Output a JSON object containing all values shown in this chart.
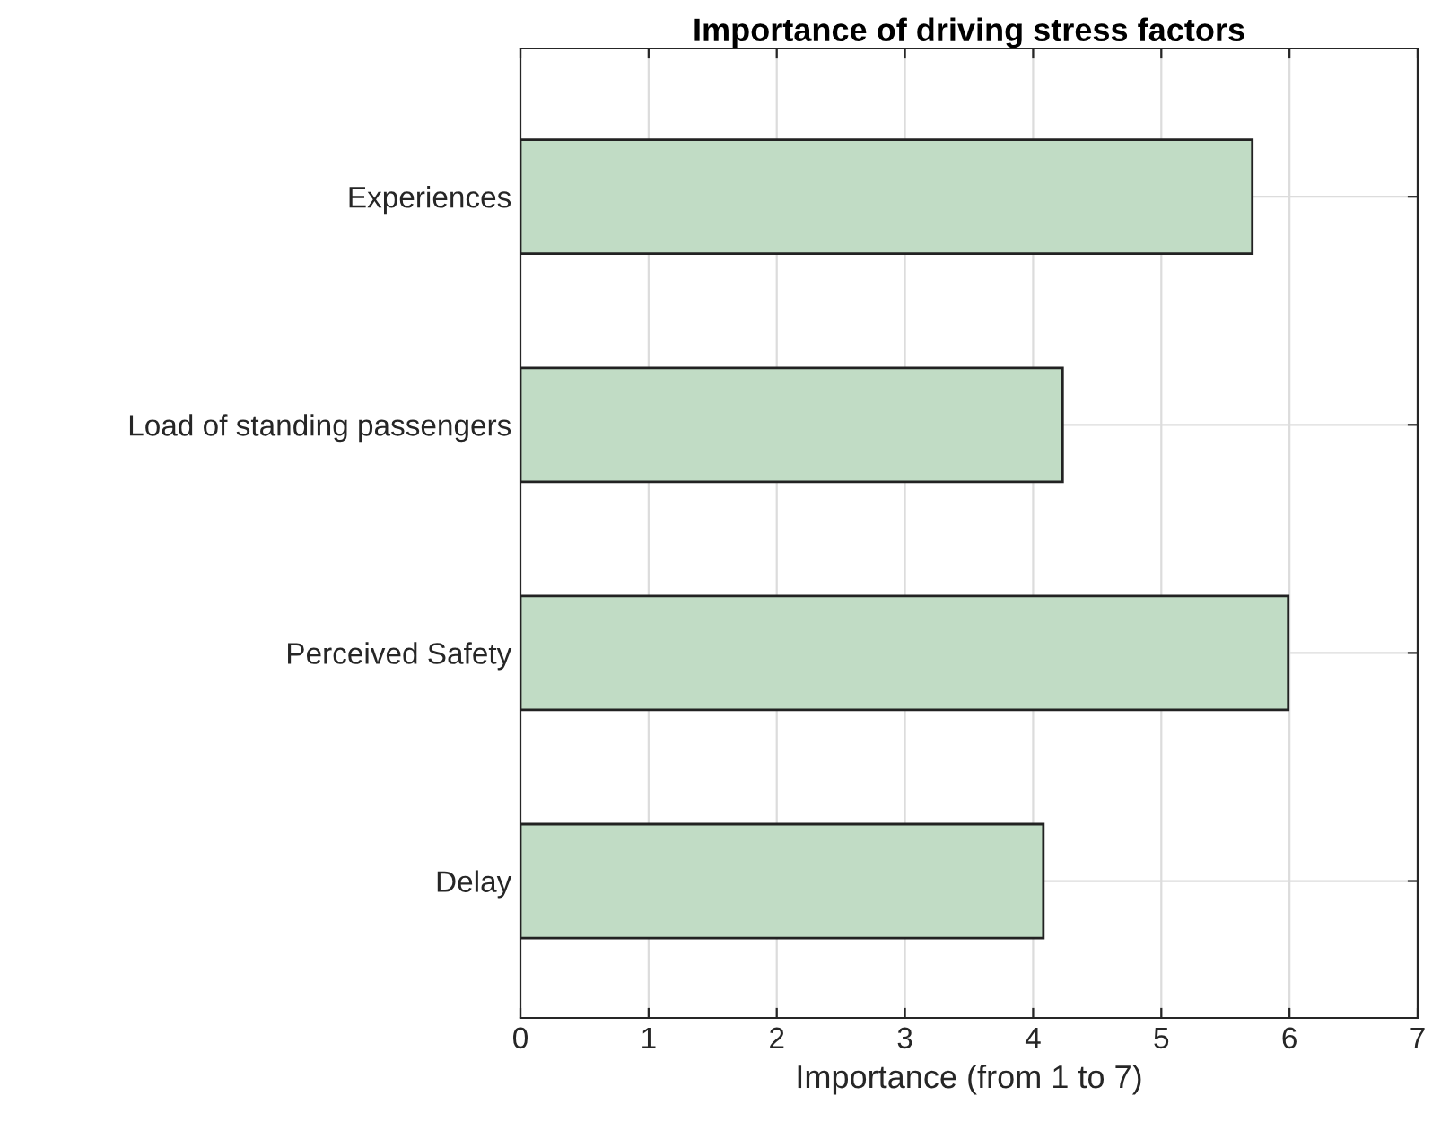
{
  "chart_data": {
    "type": "bar",
    "orientation": "horizontal",
    "title": "Importance of driving stress factors",
    "xlabel": "Importance (from 1 to 7)",
    "categories": [
      "Experiences",
      "Load of standing passengers",
      "Perceived Safety",
      "Delay"
    ],
    "values": [
      5.71,
      4.23,
      5.99,
      4.08
    ],
    "color": "#c1dcc5",
    "xlim": [
      0,
      7
    ],
    "xticks": [
      0,
      1,
      2,
      3,
      4,
      5,
      6,
      7
    ],
    "grid": true,
    "legend": false
  }
}
